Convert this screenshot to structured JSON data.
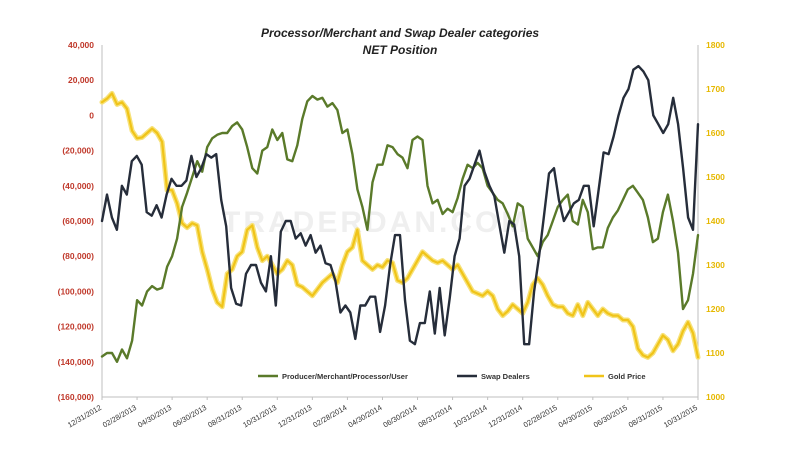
{
  "chart_data": {
    "type": "line",
    "title": "Processor/Merchant  and Swap Dealer categories",
    "subtitle": "NET Position",
    "watermark": "TRADERDAN.COM",
    "x_tick_labels": [
      "12/31/2012",
      "02/28/2013",
      "04/30/2013",
      "06/30/2013",
      "08/31/2013",
      "10/31/2013",
      "12/31/2013",
      "02/28/2014",
      "04/30/2014",
      "06/30/2014",
      "08/31/2014",
      "10/31/2014",
      "12/31/2014",
      "02/28/2015",
      "04/30/2015",
      "06/30/2015",
      "08/31/2015",
      "10/31/2015"
    ],
    "left_axis": {
      "ylim": [
        -160000,
        40000
      ],
      "ticks": [
        "40,000",
        "20,000",
        "0",
        "(20,000)",
        "(40,000)",
        "(60,000)",
        "(80,000)",
        "(100,000)",
        "(120,000)",
        "(140,000)",
        "(160,000)"
      ],
      "color": "#c0392b"
    },
    "right_axis": {
      "ylim": [
        1000,
        1800
      ],
      "ticks": [
        "1800",
        "1700",
        "1600",
        "1500",
        "1400",
        "1300",
        "1200",
        "1100",
        "1000"
      ],
      "color": "#e6b800"
    },
    "grid": false,
    "legend_position": "bottom-inside",
    "series": [
      {
        "name": "Producer/Merchant/Processor/User",
        "axis": "left",
        "color": "#5a7a2a",
        "values": [
          -137000,
          -135000,
          -135000,
          -140000,
          -133000,
          -138000,
          -128000,
          -105000,
          -108000,
          -100000,
          -97000,
          -99000,
          -98000,
          -86000,
          -80000,
          -70000,
          -52000,
          -44000,
          -35000,
          -26000,
          -32000,
          -18000,
          -13000,
          -11000,
          -10000,
          -10000,
          -6000,
          -4000,
          -8000,
          -18000,
          -30000,
          -33000,
          -20000,
          -18000,
          -8000,
          -14000,
          -10000,
          -25000,
          -26000,
          -17000,
          -2000,
          8000,
          11000,
          9000,
          10000,
          5000,
          7000,
          3000,
          -10000,
          -8000,
          -22000,
          -42000,
          -52000,
          -65000,
          -38000,
          -28000,
          -28000,
          -17000,
          -18000,
          -22000,
          -24000,
          -30000,
          -14000,
          -12000,
          -14000,
          -40000,
          -50000,
          -48000,
          -56000,
          -53000,
          -55000,
          -47000,
          -36000,
          -28000,
          -30000,
          -27000,
          -30000,
          -40000,
          -44000,
          -48000,
          -50000,
          -56000,
          -63000,
          -50000,
          -52000,
          -70000,
          -75000,
          -80000,
          -72000,
          -68000,
          -60000,
          -52000,
          -48000,
          -45000,
          -60000,
          -62000,
          -48000,
          -55000,
          -76000,
          -75000,
          -75000,
          -64000,
          -58000,
          -54000,
          -48000,
          -42000,
          -40000,
          -44000,
          -48000,
          -58000,
          -72000,
          -70000,
          -55000,
          -45000,
          -60000,
          -78000,
          -110000,
          -105000,
          -90000,
          -68000
        ]
      },
      {
        "name": "Swap Dealers",
        "axis": "left",
        "color": "#262d3a",
        "values": [
          -60000,
          -45000,
          -58000,
          -65000,
          -40000,
          -45000,
          -26000,
          -23000,
          -28000,
          -55000,
          -57000,
          -51000,
          -58000,
          -45000,
          -36000,
          -40000,
          -40000,
          -37000,
          -23000,
          -35000,
          -30000,
          -22000,
          -24000,
          -22000,
          -48000,
          -63000,
          -98000,
          -107000,
          -108000,
          -90000,
          -85000,
          -85000,
          -95000,
          -100000,
          -80000,
          -108000,
          -66000,
          -60000,
          -60000,
          -70000,
          -67000,
          -74000,
          -68000,
          -78000,
          -74000,
          -84000,
          -85000,
          -94000,
          -112000,
          -108000,
          -112000,
          -127000,
          -108000,
          -108000,
          -103000,
          -103000,
          -123000,
          -108000,
          -85000,
          -68000,
          -68000,
          -105000,
          -128000,
          -130000,
          -118000,
          -118000,
          -100000,
          -124000,
          -98000,
          -125000,
          -104000,
          -80000,
          -70000,
          -40000,
          -36000,
          -28000,
          -20000,
          -32000,
          -40000,
          -46000,
          -62000,
          -78000,
          -60000,
          -62000,
          -80000,
          -130000,
          -130000,
          -100000,
          -80000,
          -57000,
          -33000,
          -30000,
          -48000,
          -60000,
          -55000,
          -50000,
          -48000,
          -40000,
          -40000,
          -63000,
          -42000,
          -21000,
          -22000,
          -12000,
          0,
          10000,
          15000,
          26000,
          28000,
          25000,
          20000,
          0,
          -5000,
          -10000,
          -5000,
          10000,
          -5000,
          -30000,
          -58000,
          -65000,
          -5000
        ]
      },
      {
        "name": "Gold Price",
        "axis": "right",
        "color": "#f0c419",
        "values": [
          1670,
          1678,
          1690,
          1665,
          1670,
          1655,
          1605,
          1588,
          1590,
          1600,
          1610,
          1600,
          1580,
          1470,
          1470,
          1440,
          1395,
          1385,
          1395,
          1390,
          1330,
          1290,
          1245,
          1215,
          1205,
          1280,
          1290,
          1320,
          1330,
          1380,
          1390,
          1340,
          1310,
          1320,
          1300,
          1280,
          1290,
          1310,
          1300,
          1255,
          1250,
          1240,
          1230,
          1245,
          1260,
          1270,
          1280,
          1260,
          1300,
          1330,
          1340,
          1380,
          1310,
          1300,
          1290,
          1300,
          1295,
          1310,
          1305,
          1265,
          1260,
          1270,
          1290,
          1310,
          1330,
          1320,
          1310,
          1305,
          1310,
          1300,
          1290,
          1300,
          1280,
          1260,
          1240,
          1235,
          1230,
          1240,
          1230,
          1200,
          1185,
          1195,
          1210,
          1200,
          1190,
          1215,
          1255,
          1270,
          1255,
          1230,
          1210,
          1205,
          1205,
          1190,
          1185,
          1210,
          1185,
          1215,
          1200,
          1185,
          1200,
          1190,
          1185,
          1185,
          1175,
          1175,
          1160,
          1110,
          1095,
          1090,
          1100,
          1120,
          1140,
          1130,
          1105,
          1120,
          1150,
          1170,
          1145,
          1090
        ]
      }
    ]
  }
}
